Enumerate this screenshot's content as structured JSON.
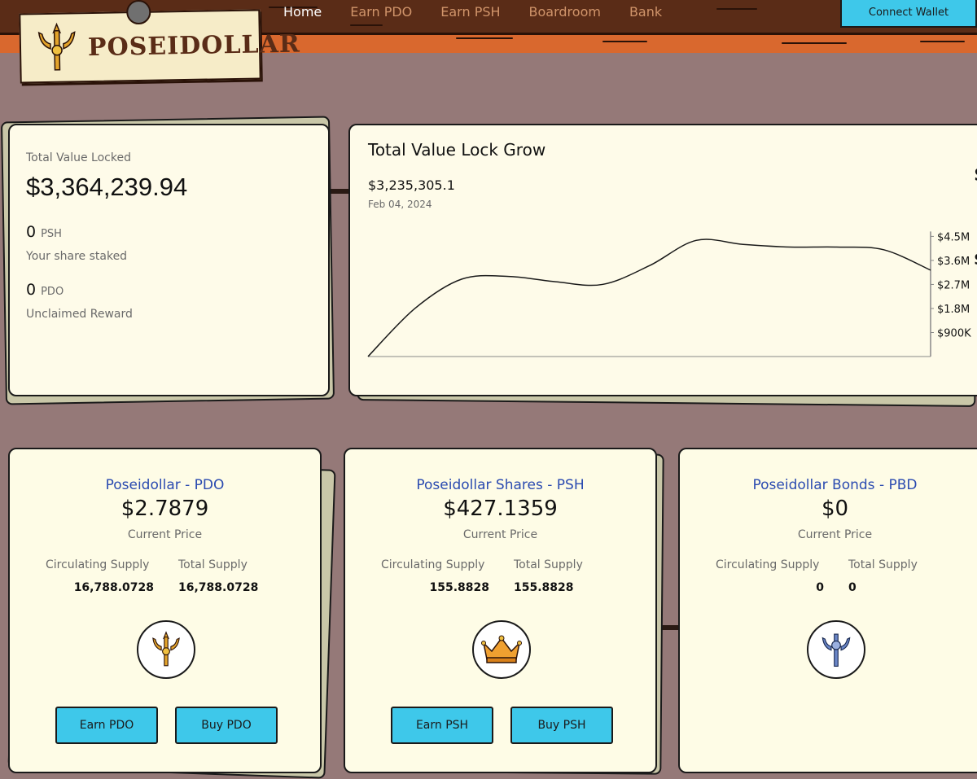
{
  "header": {
    "brand": "POSEIDOLLAR",
    "nav": [
      "Home",
      "Earn PDO",
      "Earn PSH",
      "Boardroom",
      "Bank"
    ],
    "active_nav": "Home",
    "connect_label": "Connect Wallet"
  },
  "tvl_card": {
    "label": "Total Value Locked",
    "value": "$3,364,239.94",
    "share_staked": {
      "amount": "0",
      "unit": "PSH",
      "label": "Your share staked"
    },
    "unclaimed": {
      "amount": "0",
      "unit": "PDO",
      "label": "Unclaimed Reward"
    }
  },
  "chart_card": {
    "title": "Total Value Lock Grow",
    "hover_value": "$3,235,305.1",
    "hover_date": "Feb 04, 2024",
    "edge_glyph": "$"
  },
  "chart_data": {
    "type": "line",
    "title": "Total Value Lock Grow",
    "y_tick_labels": [
      "$4.5M",
      "$3.6M",
      "$2.7M",
      "$1.8M",
      "$900K"
    ],
    "y_ticks": [
      4500000,
      3600000,
      2700000,
      1800000,
      900000
    ],
    "ylim": [
      0,
      5000000
    ],
    "x": [
      0,
      1,
      2,
      3,
      4,
      5,
      6,
      7,
      8,
      9,
      10,
      11,
      12
    ],
    "series": [
      {
        "values": [
          0,
          1800000,
          2900000,
          3000000,
          2800000,
          2700000,
          3400000,
          4350000,
          4200000,
          4100000,
          4100000,
          4000000,
          3235305
        ]
      }
    ],
    "grid": false
  },
  "tokens": [
    {
      "name": "Poseidollar - PDO",
      "price": "$2.7879",
      "price_label": "Current Price",
      "circ_label": "Circulating Supply",
      "total_label": "Total Supply",
      "circ": "16,788.0728",
      "total": "16,788.0728",
      "icon": "trident-gold-icon",
      "buttons": [
        "Earn PDO",
        "Buy PDO"
      ]
    },
    {
      "name": "Poseidollar Shares - PSH",
      "price": "$427.1359",
      "price_label": "Current Price",
      "circ_label": "Circulating Supply",
      "total_label": "Total Supply",
      "circ": "155.8828",
      "total": "155.8828",
      "icon": "crown-icon",
      "buttons": [
        "Earn PSH",
        "Buy PSH"
      ]
    },
    {
      "name": "Poseidollar Bonds - PBD",
      "price": "$0",
      "price_label": "Current Price",
      "circ_label": "Circulating Supply",
      "total_label": "Total Supply",
      "circ": "0",
      "total": "0",
      "icon": "trident-blue-icon",
      "buttons": []
    }
  ],
  "colors": {
    "background": "#957978",
    "header_wood": "#5a2c17",
    "plank": "#d9682e",
    "card": "#fefbe9",
    "accent_button": "#3ec8ea",
    "token_name": "#2a4ab0",
    "nav_inactive": "#d0946a"
  }
}
